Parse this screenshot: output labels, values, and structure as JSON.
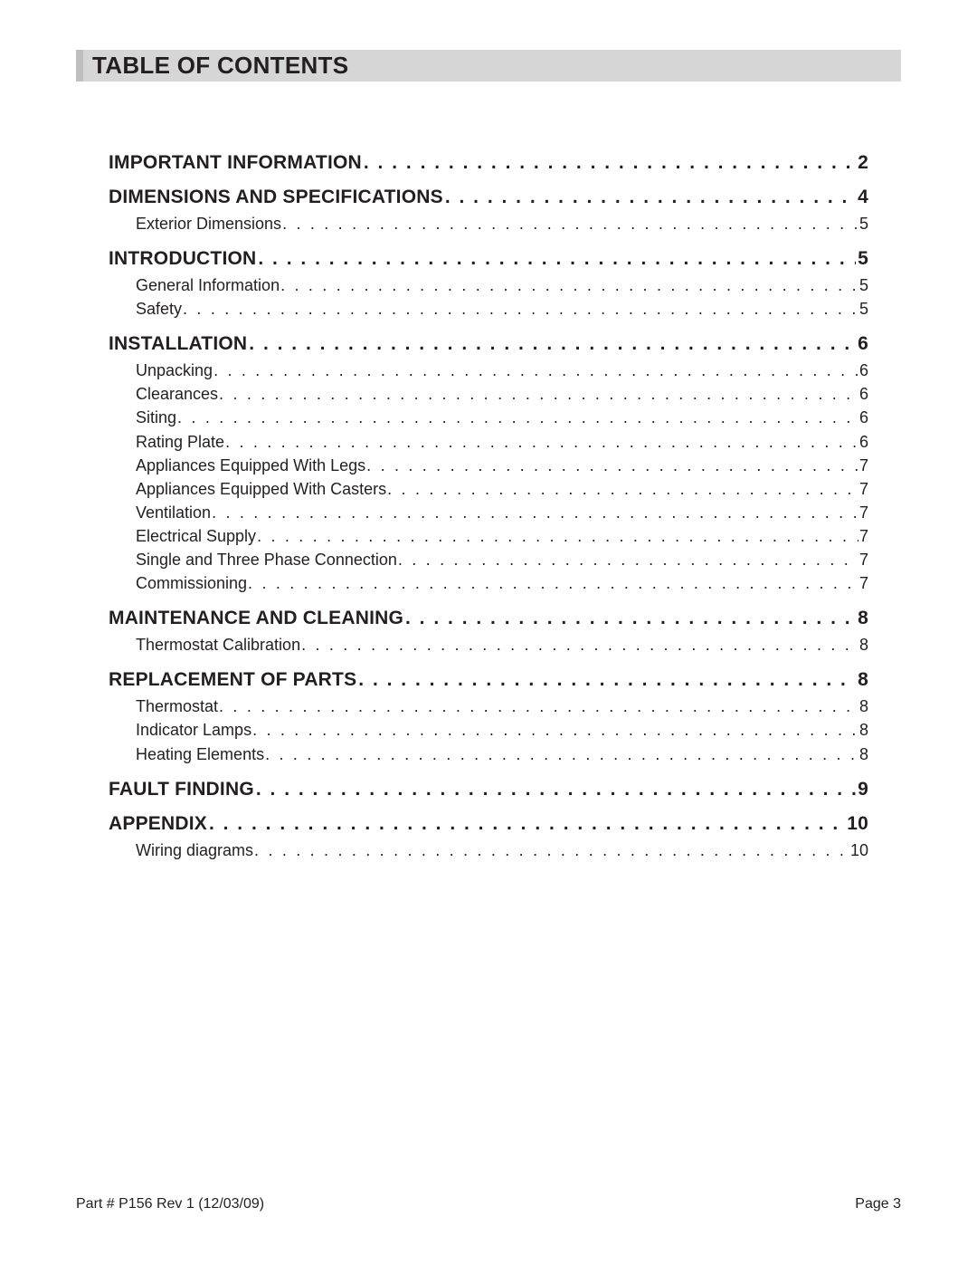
{
  "title": "TABLE OF CONTENTS",
  "colors": {
    "title_bar_bg": "#d6d6d6",
    "title_bar_border": "#bfbfbf",
    "text": "#231f20",
    "page_bg": "#ffffff"
  },
  "typography": {
    "title_fontsize": 26,
    "title_weight": 900,
    "major_fontsize": 21,
    "major_weight": 700,
    "minor_fontsize": 18,
    "minor_weight": 400,
    "footer_fontsize": 16
  },
  "toc": [
    {
      "label": "IMPORTANT INFORMATION",
      "page": "2",
      "subs": []
    },
    {
      "label": "DIMENSIONS AND SPECIFICATIONS",
      "page": "4",
      "subs": [
        {
          "label": "Exterior Dimensions",
          "page": "5"
        }
      ]
    },
    {
      "label": "INTRODUCTION",
      "page": "5",
      "subs": [
        {
          "label": "General Information",
          "page": "5"
        },
        {
          "label": "Safety",
          "page": "5"
        }
      ]
    },
    {
      "label": "INSTALLATION",
      "page": "6",
      "subs": [
        {
          "label": "Unpacking",
          "page": "6"
        },
        {
          "label": "Clearances",
          "page": "6"
        },
        {
          "label": "Siting",
          "page": "6"
        },
        {
          "label": "Rating Plate",
          "page": "6"
        },
        {
          "label": "Appliances Equipped With Legs",
          "page": "7"
        },
        {
          "label": "Appliances Equipped With Casters",
          "page": "7"
        },
        {
          "label": "Ventilation",
          "page": "7"
        },
        {
          "label": "Electrical Supply",
          "page": "7"
        },
        {
          "label": "Single and Three Phase Connection",
          "page": "7"
        },
        {
          "label": "Commissioning",
          "page": "7"
        }
      ]
    },
    {
      "label": "MAINTENANCE AND CLEANING",
      "page": "8",
      "subs": [
        {
          "label": "Thermostat Calibration",
          "page": "8"
        }
      ]
    },
    {
      "label": "REPLACEMENT OF PARTS",
      "page": "8",
      "subs": [
        {
          "label": "Thermostat",
          "page": "8"
        },
        {
          "label": "Indicator Lamps",
          "page": "8"
        },
        {
          "label": "Heating Elements",
          "page": "8"
        }
      ]
    },
    {
      "label": "FAULT FINDING",
      "page": "9",
      "subs": []
    },
    {
      "label": "APPENDIX",
      "page": "10",
      "subs": [
        {
          "label": "Wiring diagrams",
          "page": "10"
        }
      ]
    }
  ],
  "footer": {
    "left": "Part # P156 Rev 1 (12/03/09)",
    "right": "Page 3"
  }
}
